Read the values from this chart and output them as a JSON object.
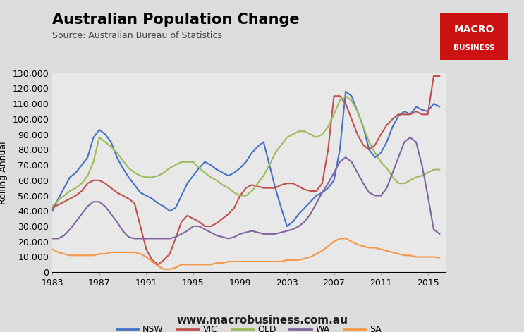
{
  "title": "Australian Population Change",
  "source": "Source: Australian Bureau of Statistics",
  "ylabel": "Rolling Annual",
  "ylim": [
    0,
    130000
  ],
  "yticks": [
    0,
    10000,
    20000,
    30000,
    40000,
    50000,
    60000,
    70000,
    80000,
    90000,
    100000,
    110000,
    120000,
    130000
  ],
  "ytick_labels": [
    "0",
    "10,000",
    "20,000",
    "30,000",
    "40,000",
    "50,000",
    "60,000",
    "70,000",
    "80,000",
    "90,000",
    "100,000",
    "110,000",
    "120,000",
    "130,000"
  ],
  "xlim": [
    1983,
    2016.5
  ],
  "xticks": [
    1983,
    1987,
    1991,
    1995,
    1999,
    2003,
    2007,
    2011,
    2015
  ],
  "background_color": "#dcdcdc",
  "plot_bg": "#e8e8e8",
  "logo_bg": "#cc1111",
  "website": "www.macrobusiness.com.au",
  "series": {
    "NSW": {
      "color": "#4472c4",
      "x": [
        1983,
        1983.5,
        1984,
        1984.5,
        1985,
        1985.5,
        1986,
        1986.5,
        1987,
        1987.5,
        1988,
        1988.5,
        1989,
        1989.5,
        1990,
        1990.5,
        1991,
        1991.5,
        1992,
        1992.5,
        1993,
        1993.5,
        1994,
        1994.5,
        1995,
        1995.5,
        1996,
        1996.5,
        1997,
        1997.5,
        1998,
        1998.5,
        1999,
        1999.5,
        2000,
        2000.5,
        2001,
        2001.5,
        2002,
        2002.5,
        2003,
        2003.5,
        2004,
        2004.5,
        2005,
        2005.5,
        2006,
        2006.5,
        2007,
        2007.5,
        2008,
        2008.5,
        2009,
        2009.5,
        2010,
        2010.5,
        2011,
        2011.5,
        2012,
        2012.5,
        2013,
        2013.5,
        2014,
        2014.5,
        2015,
        2015.5,
        2016
      ],
      "y": [
        40000,
        48000,
        55000,
        62000,
        65000,
        70000,
        75000,
        88000,
        93000,
        90000,
        85000,
        75000,
        68000,
        62000,
        57000,
        52000,
        50000,
        48000,
        45000,
        43000,
        40000,
        42000,
        50000,
        58000,
        63000,
        68000,
        72000,
        70000,
        67000,
        65000,
        63000,
        65000,
        68000,
        72000,
        78000,
        82000,
        85000,
        70000,
        55000,
        42000,
        30000,
        33000,
        38000,
        42000,
        46000,
        50000,
        52000,
        55000,
        60000,
        80000,
        118000,
        115000,
        105000,
        95000,
        80000,
        75000,
        78000,
        85000,
        95000,
        102000,
        105000,
        103000,
        108000,
        106000,
        105000,
        110000,
        108000
      ]
    },
    "VIC": {
      "color": "#c0504d",
      "x": [
        1983,
        1983.5,
        1984,
        1984.5,
        1985,
        1985.5,
        1986,
        1986.5,
        1987,
        1987.5,
        1988,
        1988.5,
        1989,
        1989.5,
        1990,
        1990.5,
        1991,
        1991.5,
        1992,
        1992.5,
        1993,
        1993.5,
        1994,
        1994.5,
        1995,
        1995.5,
        1996,
        1996.5,
        1997,
        1997.5,
        1998,
        1998.5,
        1999,
        1999.5,
        2000,
        2000.5,
        2001,
        2001.5,
        2002,
        2002.5,
        2003,
        2003.5,
        2004,
        2004.5,
        2005,
        2005.5,
        2006,
        2006.5,
        2007,
        2007.5,
        2008,
        2008.5,
        2009,
        2009.5,
        2010,
        2010.5,
        2011,
        2011.5,
        2012,
        2012.5,
        2013,
        2013.5,
        2014,
        2014.5,
        2015,
        2015.5,
        2016
      ],
      "y": [
        42000,
        44000,
        46000,
        48000,
        50000,
        53000,
        58000,
        60000,
        60000,
        58000,
        55000,
        52000,
        50000,
        48000,
        45000,
        30000,
        15000,
        8000,
        5000,
        8000,
        12000,
        22000,
        33000,
        37000,
        35000,
        33000,
        30000,
        30000,
        32000,
        35000,
        38000,
        42000,
        50000,
        55000,
        57000,
        56000,
        55000,
        55000,
        55000,
        57000,
        58000,
        58000,
        56000,
        54000,
        53000,
        53000,
        58000,
        80000,
        115000,
        115000,
        110000,
        100000,
        90000,
        83000,
        80000,
        83000,
        90000,
        96000,
        100000,
        103000,
        103000,
        103000,
        105000,
        103000,
        103000,
        128000,
        128000
      ]
    },
    "QLD": {
      "color": "#9bbb59",
      "x": [
        1983,
        1983.5,
        1984,
        1984.5,
        1985,
        1985.5,
        1986,
        1986.5,
        1987,
        1987.5,
        1988,
        1988.5,
        1989,
        1989.5,
        1990,
        1990.5,
        1991,
        1991.5,
        1992,
        1992.5,
        1993,
        1993.5,
        1994,
        1994.5,
        1995,
        1995.5,
        1996,
        1996.5,
        1997,
        1997.5,
        1998,
        1998.5,
        1999,
        1999.5,
        2000,
        2000.5,
        2001,
        2001.5,
        2002,
        2002.5,
        2003,
        2003.5,
        2004,
        2004.5,
        2005,
        2005.5,
        2006,
        2006.5,
        2007,
        2007.5,
        2008,
        2008.5,
        2009,
        2009.5,
        2010,
        2010.5,
        2011,
        2011.5,
        2012,
        2012.5,
        2013,
        2013.5,
        2014,
        2014.5,
        2015,
        2015.5,
        2016
      ],
      "y": [
        43000,
        47000,
        50000,
        53000,
        55000,
        58000,
        63000,
        72000,
        88000,
        85000,
        82000,
        78000,
        73000,
        68000,
        65000,
        63000,
        62000,
        62000,
        63000,
        65000,
        68000,
        70000,
        72000,
        72000,
        72000,
        68000,
        65000,
        62000,
        60000,
        57000,
        55000,
        52000,
        50000,
        50000,
        53000,
        58000,
        63000,
        70000,
        78000,
        83000,
        88000,
        90000,
        92000,
        92000,
        90000,
        88000,
        90000,
        95000,
        103000,
        112000,
        115000,
        112000,
        105000,
        95000,
        85000,
        78000,
        72000,
        68000,
        62000,
        58000,
        58000,
        60000,
        62000,
        63000,
        65000,
        67000,
        67000
      ]
    },
    "WA": {
      "color": "#8064a2",
      "x": [
        1983,
        1983.5,
        1984,
        1984.5,
        1985,
        1985.5,
        1986,
        1986.5,
        1987,
        1987.5,
        1988,
        1988.5,
        1989,
        1989.5,
        1990,
        1990.5,
        1991,
        1991.5,
        1992,
        1992.5,
        1993,
        1993.5,
        1994,
        1994.5,
        1995,
        1995.5,
        1996,
        1996.5,
        1997,
        1997.5,
        1998,
        1998.5,
        1999,
        1999.5,
        2000,
        2000.5,
        2001,
        2001.5,
        2002,
        2002.5,
        2003,
        2003.5,
        2004,
        2004.5,
        2005,
        2005.5,
        2006,
        2006.5,
        2007,
        2007.5,
        2008,
        2008.5,
        2009,
        2009.5,
        2010,
        2010.5,
        2011,
        2011.5,
        2012,
        2012.5,
        2013,
        2013.5,
        2014,
        2014.5,
        2015,
        2015.5,
        2016
      ],
      "y": [
        22000,
        22000,
        24000,
        28000,
        33000,
        38000,
        43000,
        46000,
        46000,
        43000,
        38000,
        33000,
        27000,
        23000,
        22000,
        22000,
        22000,
        22000,
        22000,
        22000,
        22000,
        23000,
        25000,
        27000,
        30000,
        30000,
        28000,
        26000,
        24000,
        23000,
        22000,
        23000,
        25000,
        26000,
        27000,
        26000,
        25000,
        25000,
        25000,
        26000,
        27000,
        28000,
        30000,
        33000,
        38000,
        45000,
        52000,
        58000,
        65000,
        72000,
        75000,
        72000,
        65000,
        58000,
        52000,
        50000,
        50000,
        55000,
        65000,
        75000,
        85000,
        88000,
        85000,
        70000,
        50000,
        28000,
        25000
      ]
    },
    "SA": {
      "color": "#f79646",
      "x": [
        1983,
        1983.5,
        1984,
        1984.5,
        1985,
        1985.5,
        1986,
        1986.5,
        1987,
        1987.5,
        1988,
        1988.5,
        1989,
        1989.5,
        1990,
        1990.5,
        1991,
        1991.5,
        1992,
        1992.5,
        1993,
        1993.5,
        1994,
        1994.5,
        1995,
        1995.5,
        1996,
        1996.5,
        1997,
        1997.5,
        1998,
        1998.5,
        1999,
        1999.5,
        2000,
        2000.5,
        2001,
        2001.5,
        2002,
        2002.5,
        2003,
        2003.5,
        2004,
        2004.5,
        2005,
        2005.5,
        2006,
        2006.5,
        2007,
        2007.5,
        2008,
        2008.5,
        2009,
        2009.5,
        2010,
        2010.5,
        2011,
        2011.5,
        2012,
        2012.5,
        2013,
        2013.5,
        2014,
        2014.5,
        2015,
        2015.5,
        2016
      ],
      "y": [
        15000,
        13000,
        12000,
        11000,
        11000,
        11000,
        11000,
        11000,
        12000,
        12000,
        13000,
        13000,
        13000,
        13000,
        13000,
        12000,
        10000,
        7000,
        4000,
        2000,
        2000,
        3000,
        5000,
        5000,
        5000,
        5000,
        5000,
        5000,
        6000,
        6000,
        7000,
        7000,
        7000,
        7000,
        7000,
        7000,
        7000,
        7000,
        7000,
        7000,
        8000,
        8000,
        8000,
        9000,
        10000,
        12000,
        14000,
        17000,
        20000,
        22000,
        22000,
        20000,
        18000,
        17000,
        16000,
        16000,
        15000,
        14000,
        13000,
        12000,
        11000,
        11000,
        10000,
        10000,
        10000,
        10000,
        9500
      ]
    }
  }
}
